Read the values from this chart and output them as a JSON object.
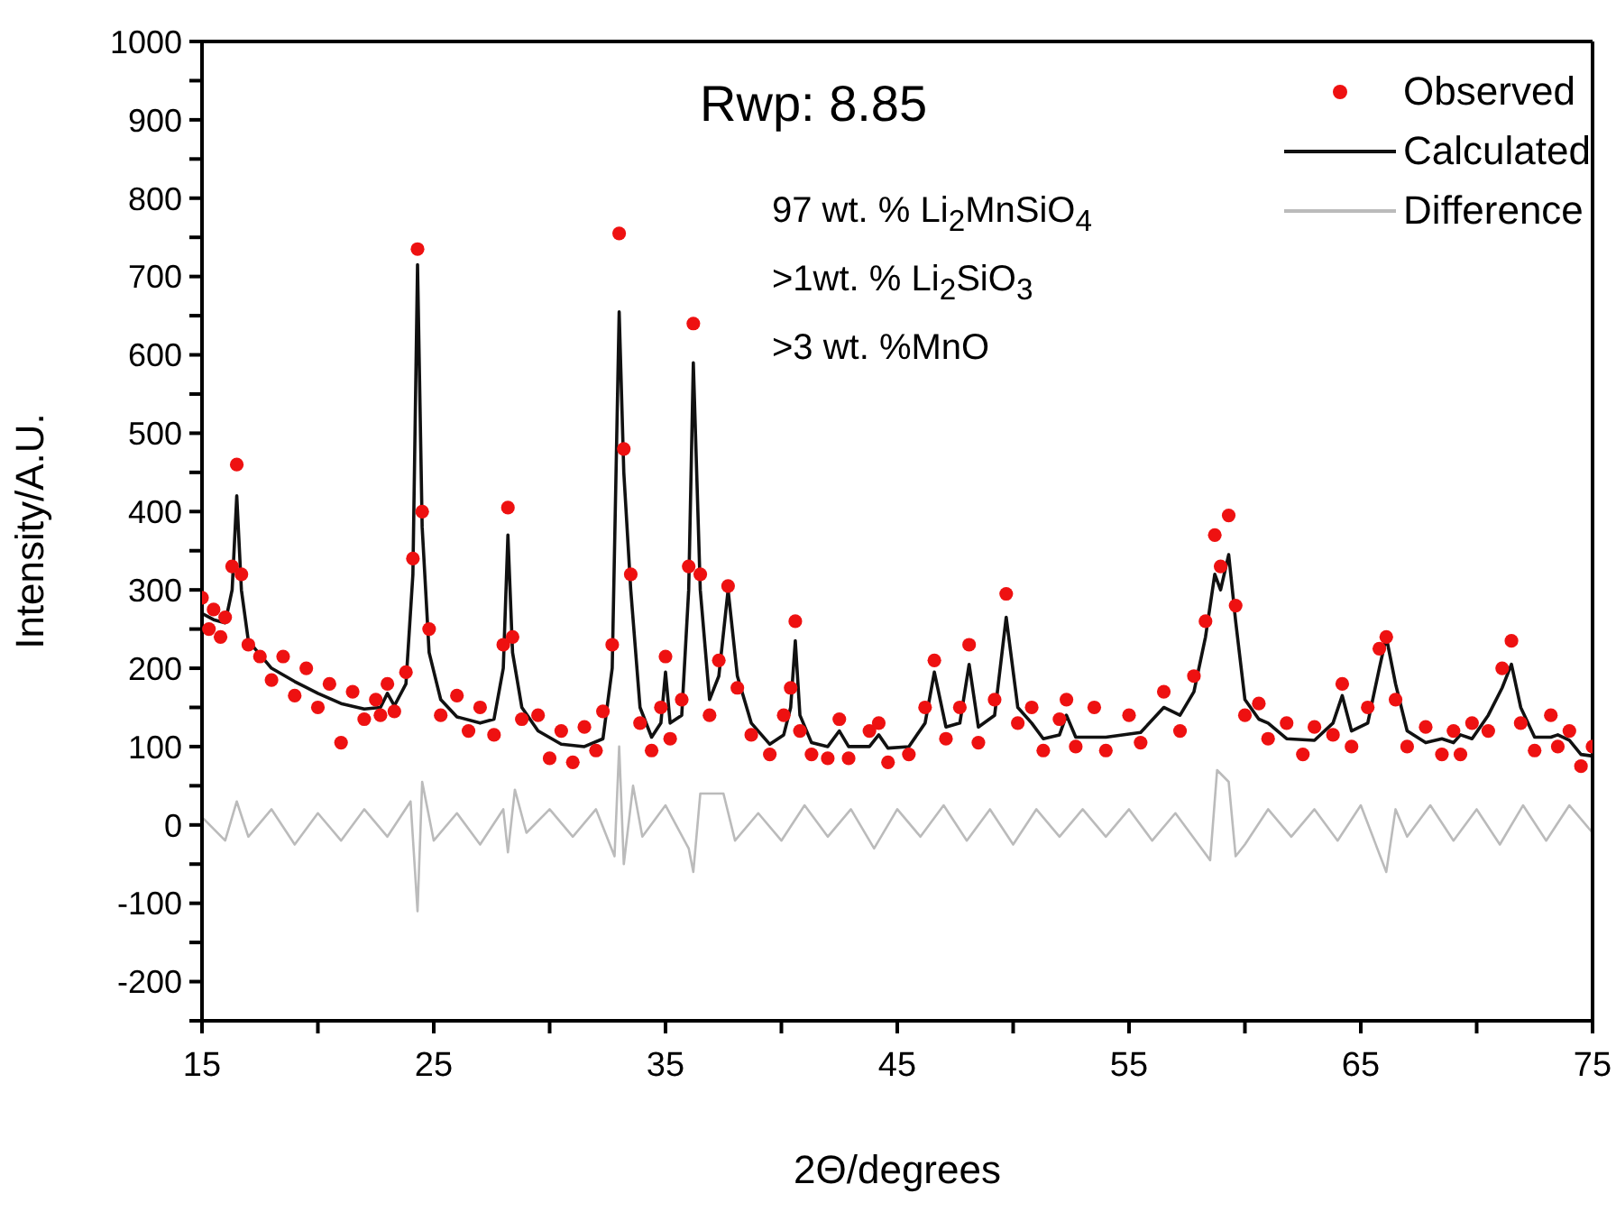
{
  "chart_data": {
    "type": "line",
    "xlabel": "2Θ/degrees",
    "ylabel": "Intensity/A.U.",
    "xlim": [
      15,
      75
    ],
    "ylim": [
      -250,
      1000
    ],
    "xticks": [
      15,
      {
        "value": 20,
        "label": null
      },
      25,
      {
        "value": 30,
        "label": null
      },
      35,
      {
        "value": 40,
        "label": null
      },
      45,
      {
        "value": 50,
        "label": null
      },
      55,
      {
        "value": 60,
        "label": null
      },
      65,
      {
        "value": 70,
        "label": null
      },
      75
    ],
    "yticks": [
      {
        "value": -250,
        "label": null
      },
      -200,
      {
        "value": -150,
        "label": null
      },
      -100,
      {
        "value": -50,
        "label": null
      },
      0,
      {
        "value": 50,
        "label": null
      },
      100,
      {
        "value": 150,
        "label": null
      },
      200,
      {
        "value": 250,
        "label": null
      },
      300,
      {
        "value": 350,
        "label": null
      },
      400,
      {
        "value": 450,
        "label": null
      },
      500,
      {
        "value": 550,
        "label": null
      },
      600,
      {
        "value": 650,
        "label": null
      },
      700,
      {
        "value": 750,
        "label": null
      },
      800,
      {
        "value": 850,
        "label": null
      },
      900,
      {
        "value": 950,
        "label": null
      },
      1000
    ],
    "grid": false,
    "legend": "top right",
    "annotations": [
      "Rwp: 8.85",
      "97 wt. % Li$_{2}$MnSiO$_{4}$",
      ">1wt. % Li$_{2}$SiO$_{3}$",
      ">3 wt. %MnO"
    ],
    "series": [
      {
        "name": "Observed",
        "type": "scatter",
        "marker": "circle",
        "color": "#ee1111",
        "x": [
          15,
          15.3,
          15.5,
          15.8,
          16,
          16.3,
          16.5,
          16.7,
          17,
          17.5,
          18,
          18.5,
          19,
          19.5,
          20,
          20.5,
          21,
          21.5,
          22,
          22.5,
          22.7,
          23,
          23.3,
          23.8,
          24.1,
          24.3,
          24.5,
          24.8,
          25.3,
          26,
          26.5,
          27,
          27.6,
          28,
          28.2,
          28.4,
          28.8,
          29.5,
          30,
          30.5,
          31,
          31.5,
          32,
          32.3,
          32.7,
          33,
          33.2,
          33.5,
          33.9,
          34.4,
          34.8,
          35,
          35.2,
          35.7,
          36,
          36.2,
          36.5,
          36.9,
          37.3,
          37.7,
          38.1,
          38.7,
          39.5,
          40.1,
          40.4,
          40.6,
          40.8,
          41.3,
          42,
          42.5,
          42.9,
          43.8,
          44.2,
          44.6,
          45.5,
          46.2,
          46.6,
          47.1,
          47.7,
          48.1,
          48.5,
          49.2,
          49.7,
          50.2,
          50.8,
          51.3,
          52,
          52.3,
          52.7,
          53.5,
          54,
          55,
          55.5,
          56.5,
          57.2,
          57.8,
          58.3,
          58.7,
          58.95,
          59.3,
          59.6,
          60,
          60.6,
          61,
          61.8,
          62.5,
          63,
          63.8,
          64.2,
          64.6,
          65.3,
          65.8,
          66.1,
          66.5,
          67,
          67.8,
          68.5,
          69,
          69.3,
          69.8,
          70.5,
          71.1,
          71.5,
          71.9,
          72.5,
          73.2,
          73.5,
          74,
          74.5,
          75
        ],
        "values": [
          290,
          250,
          275,
          240,
          265,
          330,
          460,
          320,
          230,
          215,
          185,
          215,
          165,
          200,
          150,
          180,
          105,
          170,
          135,
          160,
          140,
          180,
          145,
          195,
          340,
          735,
          400,
          250,
          140,
          165,
          120,
          150,
          115,
          230,
          405,
          240,
          135,
          140,
          85,
          120,
          80,
          125,
          95,
          145,
          230,
          755,
          480,
          320,
          130,
          95,
          150,
          215,
          110,
          160,
          330,
          640,
          320,
          140,
          210,
          305,
          175,
          115,
          90,
          140,
          175,
          260,
          120,
          90,
          85,
          135,
          85,
          120,
          130,
          80,
          90,
          150,
          210,
          110,
          150,
          230,
          105,
          160,
          295,
          130,
          150,
          95,
          135,
          160,
          100,
          150,
          95,
          140,
          105,
          170,
          120,
          190,
          260,
          370,
          330,
          395,
          280,
          140,
          155,
          110,
          130,
          90,
          125,
          115,
          180,
          100,
          150,
          225,
          240,
          160,
          100,
          125,
          90,
          120,
          90,
          130,
          120,
          200,
          235,
          130,
          95,
          140,
          100,
          120,
          75,
          100
        ]
      },
      {
        "name": "Calculated",
        "color": "#111111",
        "x": [
          15,
          15.5,
          16,
          16.3,
          16.5,
          16.7,
          17,
          18,
          19,
          20,
          21,
          22,
          22.7,
          23,
          23.3,
          23.8,
          24.1,
          24.3,
          24.5,
          24.8,
          25.3,
          26,
          27,
          27.6,
          28,
          28.2,
          28.4,
          28.8,
          29.5,
          30.5,
          31.5,
          32.3,
          32.7,
          33,
          33.2,
          33.5,
          33.9,
          34.4,
          34.8,
          35,
          35.2,
          35.7,
          36,
          36.2,
          36.5,
          36.9,
          37.3,
          37.7,
          38.1,
          38.7,
          39.5,
          40.1,
          40.4,
          40.6,
          40.8,
          41.3,
          42,
          42.5,
          42.9,
          43.8,
          44.2,
          44.6,
          45.5,
          46.2,
          46.6,
          47.1,
          47.7,
          48.1,
          48.5,
          49.2,
          49.7,
          50.2,
          50.8,
          51.3,
          52,
          52.3,
          52.7,
          54,
          55.5,
          56.5,
          57.2,
          57.8,
          58.3,
          58.7,
          58.95,
          59.3,
          59.6,
          60,
          60.6,
          61,
          61.8,
          63,
          63.8,
          64.2,
          64.6,
          65.3,
          65.8,
          66.1,
          66.5,
          67,
          67.8,
          68.5,
          69,
          69.3,
          69.8,
          70.5,
          71.1,
          71.5,
          71.9,
          72.5,
          73.2,
          73.5,
          74,
          74.5,
          75
        ],
        "values": [
          270,
          262,
          258,
          300,
          420,
          300,
          235,
          200,
          183,
          168,
          155,
          148,
          150,
          168,
          152,
          180,
          320,
          715,
          380,
          220,
          160,
          138,
          130,
          135,
          200,
          370,
          220,
          150,
          120,
          103,
          100,
          110,
          200,
          655,
          450,
          300,
          150,
          112,
          130,
          195,
          130,
          140,
          300,
          590,
          300,
          160,
          190,
          300,
          190,
          130,
          103,
          115,
          150,
          235,
          140,
          105,
          100,
          120,
          100,
          100,
          115,
          98,
          100,
          130,
          195,
          125,
          130,
          205,
          125,
          140,
          265,
          150,
          130,
          110,
          115,
          140,
          112,
          112,
          118,
          150,
          140,
          170,
          240,
          320,
          300,
          345,
          260,
          160,
          135,
          130,
          110,
          108,
          130,
          165,
          120,
          130,
          200,
          240,
          180,
          120,
          105,
          110,
          105,
          115,
          110,
          140,
          175,
          205,
          150,
          112,
          112,
          115,
          108,
          90,
          88
        ]
      },
      {
        "name": "Difference",
        "color": "#bbbbbb",
        "x": [
          15,
          16,
          16.5,
          17,
          18,
          19,
          20,
          21,
          22,
          23,
          24,
          24.3,
          24.5,
          25,
          26,
          27,
          28,
          28.2,
          28.5,
          29,
          30,
          31,
          32,
          32.8,
          33,
          33.2,
          33.6,
          34,
          35,
          36,
          36.2,
          36.5,
          37.5,
          38,
          39,
          40,
          41,
          42,
          43,
          44,
          45,
          46,
          47,
          48,
          49,
          50,
          51,
          52,
          53,
          54,
          55,
          56,
          57,
          58,
          58.5,
          58.8,
          59.3,
          59.6,
          60,
          61,
          62,
          63,
          64,
          65,
          66.1,
          66.5,
          67,
          68,
          69,
          70,
          71,
          72,
          73,
          74,
          75
        ],
        "values": [
          10,
          -20,
          30,
          -15,
          20,
          -25,
          15,
          -20,
          20,
          -15,
          30,
          -110,
          55,
          -20,
          15,
          -25,
          20,
          -35,
          45,
          -10,
          20,
          -15,
          20,
          -40,
          100,
          -50,
          50,
          -15,
          25,
          -30,
          -60,
          40,
          40,
          -20,
          15,
          -20,
          25,
          -15,
          20,
          -30,
          20,
          -15,
          25,
          -20,
          20,
          -25,
          20,
          -15,
          20,
          -15,
          20,
          -20,
          15,
          -25,
          -45,
          70,
          55,
          -40,
          -25,
          20,
          -15,
          20,
          -20,
          25,
          -60,
          20,
          -15,
          25,
          -20,
          20,
          -25,
          25,
          -20,
          25,
          -10
        ]
      }
    ]
  }
}
